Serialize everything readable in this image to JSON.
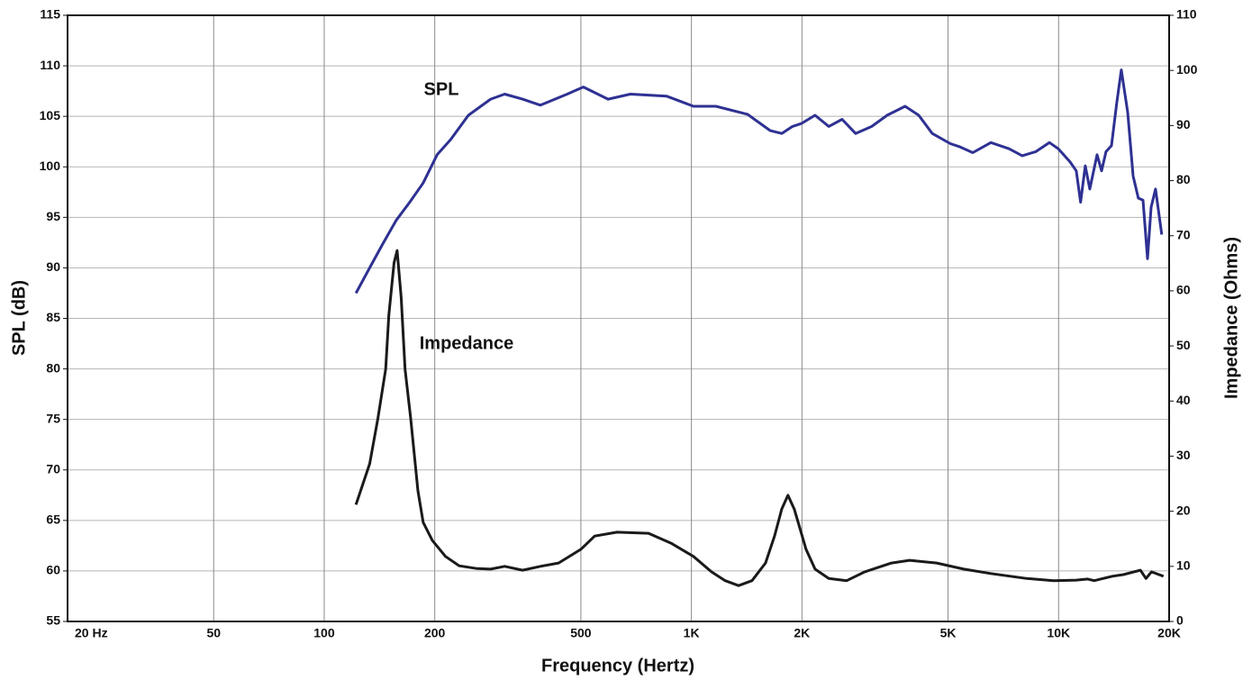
{
  "chart_data": {
    "type": "line",
    "xlabel": "Frequency (Hertz)",
    "ylabel": "SPL (dB)",
    "y2label": "Impedance (Ohms)",
    "xscale": "log",
    "xlim": [
      20,
      20000
    ],
    "xticks": [
      {
        "value": 20,
        "label": "20 Hz"
      },
      50,
      100,
      200,
      500,
      {
        "value": 1000,
        "label": "1K"
      },
      {
        "value": 2000,
        "label": "2K"
      },
      {
        "value": 5000,
        "label": "5K"
      },
      {
        "value": 10000,
        "label": "10K"
      },
      {
        "value": 20000,
        "label": "20K"
      }
    ],
    "ylim": [
      55,
      115
    ],
    "yticks": [
      55,
      60,
      65,
      70,
      75,
      80,
      85,
      90,
      95,
      100,
      105,
      110,
      115
    ],
    "y2lim": [
      0,
      110
    ],
    "y2ticks": [
      0,
      10,
      20,
      30,
      40,
      50,
      60,
      70,
      80,
      90,
      100,
      110
    ],
    "grid": true,
    "series": [
      {
        "name": "SPL",
        "color": "#2e3192",
        "x": [
          122,
          133,
          144,
          157,
          171,
          186,
          203,
          221,
          247,
          284,
          310,
          347,
          388,
          459,
          508,
          593,
          682,
          855,
          1013,
          1166,
          1422,
          1637,
          1762,
          1885,
          1996,
          2172,
          2366,
          2572,
          2800,
          3098,
          3412,
          3820,
          4160,
          4529,
          5072,
          5363,
          5839,
          6540,
          7323,
          7962,
          8670,
          9440,
          9980,
          10740,
          11170,
          11480,
          11820,
          12160,
          12730,
          13090,
          13460,
          13930,
          14400,
          14820,
          15420,
          15960,
          16490,
          16980,
          17460,
          17860,
          18370,
          19100
        ],
        "values": [
          87.5,
          90.0,
          92.3,
          94.7,
          96.5,
          98.4,
          101.2,
          102.7,
          105.1,
          106.7,
          107.2,
          106.7,
          106.1,
          107.2,
          107.9,
          106.7,
          107.2,
          107.0,
          106.0,
          106.0,
          105.2,
          103.6,
          103.3,
          104.0,
          104.3,
          105.1,
          104.0,
          104.7,
          103.3,
          104.0,
          105.1,
          106.0,
          105.1,
          103.3,
          102.3,
          102.0,
          101.4,
          102.4,
          101.8,
          101.1,
          101.5,
          102.4,
          101.8,
          100.5,
          99.6,
          96.5,
          100.1,
          97.8,
          101.2,
          99.6,
          101.5,
          102.1,
          106.3,
          109.6,
          105.4,
          99.1,
          96.9,
          96.7,
          90.9,
          96.0,
          97.8,
          93.3
        ]
      },
      {
        "name": "Impedance",
        "color": "#1a1a1a",
        "axis": "y2",
        "x": [
          122,
          133,
          140,
          147,
          150,
          155,
          158,
          162,
          166,
          172,
          180,
          186,
          197,
          214,
          233,
          261,
          284,
          310,
          347,
          388,
          435,
          500,
          545,
          627,
          764,
          880,
          1013,
          1134,
          1236,
          1344,
          1462,
          1592,
          1684,
          1762,
          1832,
          1906,
          2052,
          2172,
          2366,
          2648,
          2966,
          3507,
          3928,
          4655,
          5518,
          6540,
          8187,
          9700,
          11170,
          12000,
          12500,
          14000,
          15000,
          16700,
          17300,
          17900,
          19300
        ],
        "values": [
          21.2,
          28.6,
          36.8,
          45.8,
          55.6,
          65.1,
          67.3,
          58.8,
          45.8,
          36.8,
          23.7,
          18.0,
          14.7,
          11.8,
          10.1,
          9.6,
          9.5,
          10.0,
          9.3,
          10.0,
          10.6,
          13.1,
          15.5,
          16.2,
          16.0,
          14.2,
          11.8,
          9.0,
          7.4,
          6.5,
          7.4,
          10.6,
          15.5,
          20.4,
          22.9,
          20.4,
          13.1,
          9.5,
          7.8,
          7.4,
          9.0,
          10.6,
          11.1,
          10.6,
          9.5,
          8.7,
          7.8,
          7.4,
          7.5,
          7.7,
          7.4,
          8.2,
          8.5,
          9.3,
          7.8,
          9.0,
          8.2
        ]
      }
    ]
  }
}
